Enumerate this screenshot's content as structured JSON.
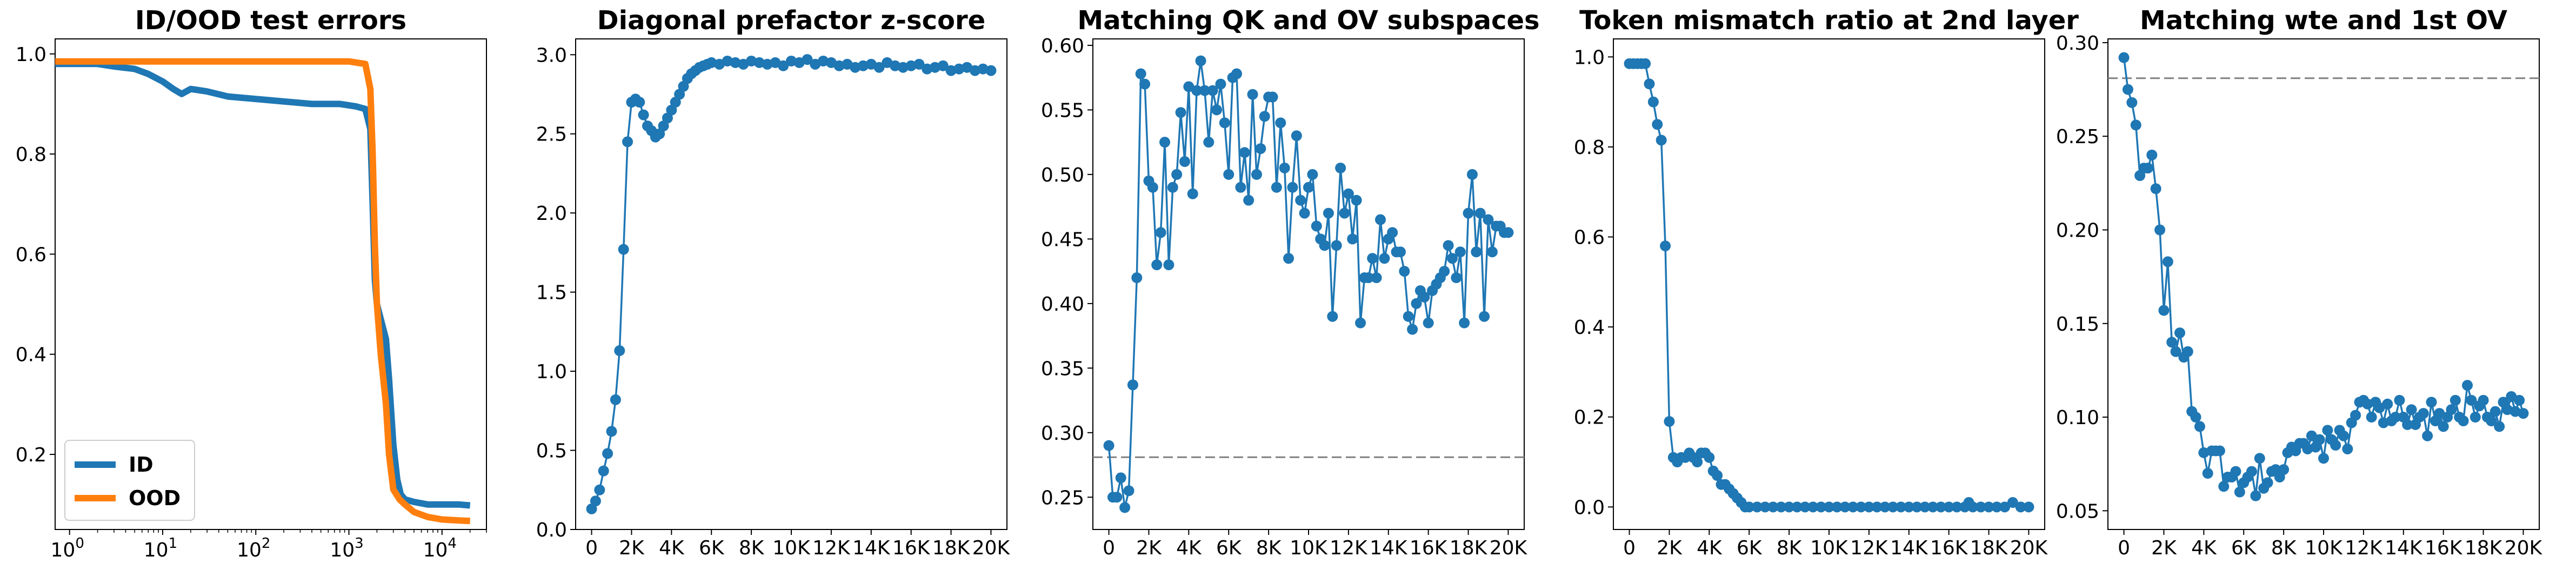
{
  "figure": {
    "panels": 5
  },
  "chart_data": [
    {
      "type": "line",
      "title": "ID/OOD test errors",
      "xscale": "log",
      "xlim": [
        0.7,
        30000
      ],
      "ylim": [
        0.05,
        1.03
      ],
      "x_ticks": [
        {
          "v": 1,
          "b": "10",
          "e": "0"
        },
        {
          "v": 10,
          "b": "10",
          "e": "1"
        },
        {
          "v": 100,
          "b": "10",
          "e": "2"
        },
        {
          "v": 1000,
          "b": "10",
          "e": "3"
        },
        {
          "v": 10000,
          "b": "10",
          "e": "4"
        }
      ],
      "y_ticks": [
        0.2,
        0.4,
        0.6,
        0.8,
        1.0
      ],
      "legend": {
        "position": "lower-left"
      },
      "series": [
        {
          "name": "ID",
          "color": "#1f77b4",
          "x": [
            0.7,
            1,
            2,
            3,
            5,
            7,
            10,
            13,
            16,
            20,
            30,
            50,
            100,
            200,
            400,
            800,
            1200,
            1500,
            1700,
            1800,
            1900,
            2000,
            2200,
            2500,
            2700,
            3000,
            3300,
            3600,
            4000,
            5000,
            7000,
            10000,
            15000,
            20000
          ],
          "y": [
            0.98,
            0.98,
            0.98,
            0.975,
            0.97,
            0.96,
            0.945,
            0.93,
            0.92,
            0.93,
            0.925,
            0.915,
            0.91,
            0.905,
            0.9,
            0.9,
            0.895,
            0.89,
            0.85,
            0.7,
            0.55,
            0.5,
            0.47,
            0.43,
            0.35,
            0.22,
            0.15,
            0.12,
            0.11,
            0.105,
            0.1,
            0.1,
            0.1,
            0.098
          ]
        },
        {
          "name": "OOD",
          "color": "#ff7f0e",
          "x": [
            0.7,
            1,
            10,
            100,
            1000,
            1500,
            1700,
            1800,
            1900,
            2000,
            2200,
            2500,
            2700,
            3000,
            3500,
            4000,
            5000,
            7000,
            10000,
            15000,
            20000
          ],
          "y": [
            0.985,
            0.985,
            0.985,
            0.985,
            0.985,
            0.98,
            0.93,
            0.8,
            0.62,
            0.5,
            0.4,
            0.3,
            0.2,
            0.13,
            0.11,
            0.1,
            0.085,
            0.075,
            0.07,
            0.068,
            0.067
          ]
        }
      ]
    },
    {
      "type": "line",
      "title": "Diagonal prefactor z-score",
      "xlim": [
        -800,
        20800
      ],
      "ylim": [
        0,
        3.1
      ],
      "x_ticks": [
        "0",
        "2K",
        "4K",
        "6K",
        "8K",
        "10K",
        "12K",
        "14K",
        "16K",
        "18K",
        "20K"
      ],
      "y_ticks": [
        0.0,
        0.5,
        1.0,
        1.5,
        2.0,
        2.5,
        3.0
      ],
      "series": [
        {
          "color": "#1f77b4",
          "x": [
            0,
            200,
            400,
            600,
            800,
            1000,
            1200,
            1400,
            1600,
            1800,
            2000,
            2200,
            2400,
            2600,
            2800,
            3000,
            3200,
            3400,
            3600,
            3800,
            4000,
            4200,
            4400,
            4600,
            4800,
            5000,
            5200,
            5400,
            5600,
            5800,
            6000,
            6400,
            6800,
            7200,
            7600,
            8000,
            8400,
            8800,
            9200,
            9600,
            10000,
            10400,
            10800,
            11200,
            11600,
            12000,
            12400,
            12800,
            13200,
            13600,
            14000,
            14400,
            14800,
            15200,
            15600,
            16000,
            16400,
            16800,
            17200,
            17600,
            18000,
            18400,
            18800,
            19200,
            19600,
            20000
          ],
          "y": [
            0.13,
            0.18,
            0.25,
            0.37,
            0.48,
            0.62,
            0.82,
            1.13,
            1.77,
            2.45,
            2.7,
            2.72,
            2.7,
            2.62,
            2.55,
            2.52,
            2.48,
            2.5,
            2.55,
            2.6,
            2.65,
            2.7,
            2.75,
            2.8,
            2.85,
            2.88,
            2.9,
            2.92,
            2.93,
            2.94,
            2.95,
            2.94,
            2.96,
            2.95,
            2.94,
            2.96,
            2.95,
            2.94,
            2.95,
            2.93,
            2.96,
            2.95,
            2.97,
            2.94,
            2.96,
            2.95,
            2.93,
            2.94,
            2.92,
            2.93,
            2.94,
            2.92,
            2.95,
            2.93,
            2.92,
            2.93,
            2.94,
            2.91,
            2.92,
            2.93,
            2.9,
            2.91,
            2.92,
            2.9,
            2.91,
            2.9
          ]
        }
      ]
    },
    {
      "type": "line",
      "title": "Matching QK and OV subspaces",
      "xlim": [
        -800,
        20800
      ],
      "ylim": [
        0.225,
        0.605
      ],
      "x_ticks": [
        "0",
        "2K",
        "4K",
        "6K",
        "8K",
        "10K",
        "12K",
        "14K",
        "16K",
        "18K",
        "20K"
      ],
      "y_ticks": [
        0.25,
        0.3,
        0.35,
        0.4,
        0.45,
        0.5,
        0.55,
        0.6
      ],
      "hline": {
        "y": 0.281,
        "color": "#808080"
      },
      "series": [
        {
          "color": "#1f77b4",
          "x": [
            0,
            200,
            400,
            600,
            800,
            1000,
            1200,
            1400,
            1600,
            1800,
            2000,
            2200,
            2400,
            2600,
            2800,
            3000,
            3200,
            3400,
            3600,
            3800,
            4000,
            4200,
            4400,
            4600,
            4800,
            5000,
            5200,
            5400,
            5600,
            5800,
            6000,
            6200,
            6400,
            6600,
            6800,
            7000,
            7200,
            7400,
            7600,
            7800,
            8000,
            8200,
            8400,
            8600,
            8800,
            9000,
            9200,
            9400,
            9600,
            9800,
            10000,
            10200,
            10400,
            10600,
            10800,
            11000,
            11200,
            11400,
            11600,
            11800,
            12000,
            12200,
            12400,
            12600,
            12800,
            13000,
            13200,
            13400,
            13600,
            13800,
            14000,
            14200,
            14400,
            14600,
            14800,
            15000,
            15200,
            15400,
            15600,
            15800,
            16000,
            16200,
            16400,
            16600,
            16800,
            17000,
            17200,
            17400,
            17600,
            17800,
            18000,
            18200,
            18400,
            18600,
            18800,
            19000,
            19200,
            19400,
            19600,
            19800,
            20000
          ],
          "y": [
            0.29,
            0.25,
            0.25,
            0.265,
            0.242,
            0.255,
            0.337,
            0.42,
            0.578,
            0.57,
            0.495,
            0.49,
            0.43,
            0.455,
            0.525,
            0.43,
            0.49,
            0.5,
            0.548,
            0.51,
            0.568,
            0.485,
            0.565,
            0.588,
            0.565,
            0.525,
            0.565,
            0.55,
            0.57,
            0.54,
            0.5,
            0.575,
            0.578,
            0.49,
            0.517,
            0.48,
            0.562,
            0.5,
            0.52,
            0.545,
            0.56,
            0.56,
            0.49,
            0.54,
            0.505,
            0.435,
            0.49,
            0.53,
            0.48,
            0.47,
            0.49,
            0.5,
            0.46,
            0.45,
            0.445,
            0.47,
            0.39,
            0.445,
            0.505,
            0.47,
            0.485,
            0.45,
            0.48,
            0.385,
            0.42,
            0.42,
            0.435,
            0.42,
            0.465,
            0.435,
            0.45,
            0.455,
            0.44,
            0.44,
            0.425,
            0.39,
            0.38,
            0.4,
            0.41,
            0.405,
            0.385,
            0.41,
            0.415,
            0.42,
            0.425,
            0.445,
            0.435,
            0.42,
            0.44,
            0.385,
            0.47,
            0.5,
            0.44,
            0.47,
            0.39,
            0.465,
            0.44,
            0.46,
            0.46,
            0.455,
            0.455
          ]
        }
      ]
    },
    {
      "type": "line",
      "title": "Token mismatch ratio at 2nd layer",
      "xlim": [
        -800,
        20800
      ],
      "ylim": [
        -0.05,
        1.04
      ],
      "x_ticks": [
        "0",
        "2K",
        "4K",
        "6K",
        "8K",
        "10K",
        "12K",
        "14K",
        "16K",
        "18K",
        "20K"
      ],
      "y_ticks": [
        0.0,
        0.2,
        0.4,
        0.6,
        0.8,
        1.0
      ],
      "series": [
        {
          "color": "#1f77b4",
          "x": [
            0,
            200,
            400,
            600,
            800,
            1000,
            1200,
            1400,
            1600,
            1800,
            2000,
            2200,
            2400,
            2600,
            2800,
            3000,
            3200,
            3400,
            3600,
            3800,
            4000,
            4200,
            4400,
            4600,
            4800,
            5000,
            5200,
            5400,
            5600,
            5800,
            6000,
            6400,
            6800,
            7200,
            7600,
            8000,
            8400,
            8800,
            9200,
            9600,
            10000,
            10400,
            10800,
            11200,
            11600,
            12000,
            12400,
            12800,
            13200,
            13600,
            14000,
            14400,
            14800,
            15200,
            15600,
            16000,
            16400,
            16800,
            17000,
            17200,
            17600,
            18000,
            18400,
            18800,
            19200,
            19600,
            20000
          ],
          "y": [
            0.985,
            0.985,
            0.985,
            0.985,
            0.985,
            0.94,
            0.9,
            0.85,
            0.815,
            0.58,
            0.19,
            0.11,
            0.1,
            0.11,
            0.11,
            0.12,
            0.11,
            0.1,
            0.12,
            0.12,
            0.11,
            0.08,
            0.07,
            0.05,
            0.05,
            0.04,
            0.03,
            0.02,
            0.01,
            0.0,
            0.0,
            0.0,
            0.0,
            0.0,
            0.0,
            0.0,
            0.0,
            0.0,
            0.0,
            0.0,
            0.0,
            0.0,
            0.0,
            0.0,
            0.0,
            0.0,
            0.0,
            0.0,
            0.0,
            0.0,
            0.0,
            0.0,
            0.0,
            0.0,
            0.0,
            0.0,
            0.0,
            0.0,
            0.01,
            0.0,
            0.0,
            0.0,
            0.0,
            0.0,
            0.01,
            0.0,
            0.0
          ]
        }
      ]
    },
    {
      "type": "line",
      "title": "Matching wte and 1st OV",
      "xlim": [
        -800,
        20800
      ],
      "ylim": [
        0.04,
        0.302
      ],
      "x_ticks": [
        "0",
        "2K",
        "4K",
        "6K",
        "8K",
        "10K",
        "12K",
        "14K",
        "16K",
        "18K",
        "20K"
      ],
      "y_ticks": [
        0.05,
        0.1,
        0.15,
        0.2,
        0.25,
        0.3
      ],
      "hline": {
        "y": 0.281,
        "color": "#808080"
      },
      "series": [
        {
          "color": "#1f77b4",
          "x": [
            0,
            200,
            400,
            600,
            800,
            1000,
            1200,
            1400,
            1600,
            1800,
            2000,
            2200,
            2400,
            2600,
            2800,
            3000,
            3200,
            3400,
            3600,
            3800,
            4000,
            4200,
            4400,
            4600,
            4800,
            5000,
            5200,
            5400,
            5600,
            5800,
            6000,
            6200,
            6400,
            6600,
            6800,
            7000,
            7200,
            7400,
            7600,
            7800,
            8000,
            8200,
            8400,
            8600,
            8800,
            9000,
            9200,
            9400,
            9600,
            9800,
            10000,
            10200,
            10400,
            10600,
            10800,
            11000,
            11200,
            11400,
            11600,
            11800,
            12000,
            12200,
            12400,
            12600,
            12800,
            13000,
            13200,
            13400,
            13600,
            13800,
            14000,
            14200,
            14400,
            14600,
            14800,
            15000,
            15200,
            15400,
            15600,
            15800,
            16000,
            16200,
            16400,
            16600,
            16800,
            17000,
            17200,
            17400,
            17600,
            17800,
            18000,
            18200,
            18400,
            18600,
            18800,
            19000,
            19200,
            19400,
            19600,
            19800,
            20000
          ],
          "y": [
            0.292,
            0.275,
            0.268,
            0.256,
            0.229,
            0.233,
            0.233,
            0.24,
            0.222,
            0.2,
            0.157,
            0.183,
            0.14,
            0.135,
            0.145,
            0.132,
            0.135,
            0.103,
            0.1,
            0.095,
            0.081,
            0.07,
            0.082,
            0.082,
            0.082,
            0.063,
            0.068,
            0.068,
            0.071,
            0.06,
            0.065,
            0.068,
            0.071,
            0.058,
            0.078,
            0.062,
            0.065,
            0.071,
            0.072,
            0.068,
            0.072,
            0.081,
            0.084,
            0.082,
            0.086,
            0.086,
            0.083,
            0.09,
            0.084,
            0.088,
            0.078,
            0.093,
            0.088,
            0.085,
            0.093,
            0.09,
            0.083,
            0.097,
            0.101,
            0.108,
            0.109,
            0.107,
            0.1,
            0.108,
            0.105,
            0.097,
            0.107,
            0.098,
            0.1,
            0.109,
            0.1,
            0.096,
            0.104,
            0.096,
            0.1,
            0.102,
            0.09,
            0.108,
            0.098,
            0.102,
            0.095,
            0.1,
            0.104,
            0.109,
            0.1,
            0.098,
            0.117,
            0.109,
            0.1,
            0.106,
            0.109,
            0.1,
            0.098,
            0.103,
            0.095,
            0.108,
            0.104,
            0.111,
            0.103,
            0.109,
            0.102
          ]
        }
      ]
    }
  ]
}
